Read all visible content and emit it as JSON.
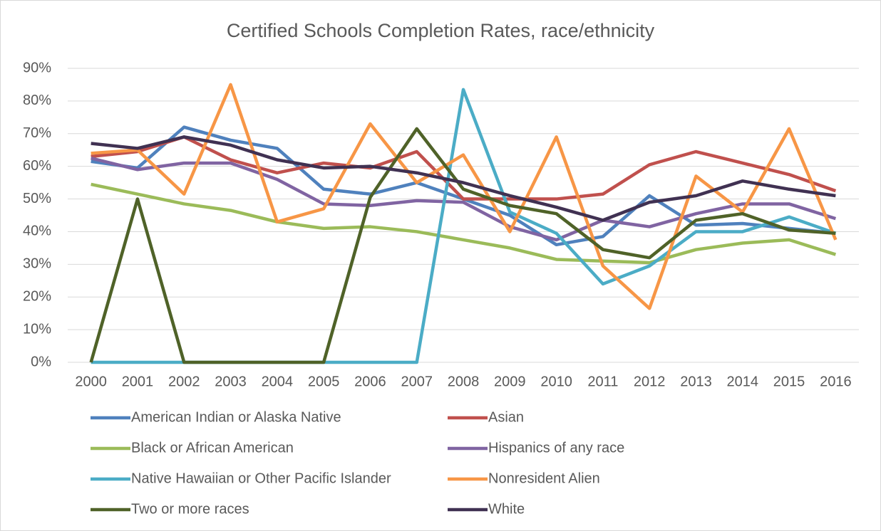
{
  "chart_data": {
    "type": "line",
    "title": "Certified Schools Completion Rates, race/ethnicity",
    "categories": [
      "2000",
      "2001",
      "2002",
      "2003",
      "2004",
      "2005",
      "2006",
      "2007",
      "2008",
      "2009",
      "2010",
      "2011",
      "2012",
      "2013",
      "2014",
      "2015",
      "2016"
    ],
    "series": [
      {
        "name": "American Indian or Alaska Native",
        "color": "#4f81bd",
        "values": [
          61.5,
          59.5,
          72,
          68,
          65.5,
          53,
          51.5,
          55,
          50,
          45,
          36,
          38.5,
          51,
          42,
          42.5,
          41,
          39.5
        ]
      },
      {
        "name": "Asian",
        "color": "#c0504d",
        "values": [
          63,
          64.5,
          69,
          62,
          58,
          61,
          59.5,
          64.5,
          50,
          50,
          50,
          51.5,
          60.5,
          64.5,
          61,
          57.5,
          52.5
        ]
      },
      {
        "name": "Black or African American",
        "color": "#9bbb59",
        "values": [
          54.5,
          51.5,
          48.5,
          46.5,
          43,
          41,
          41.5,
          40,
          37.5,
          35,
          31.5,
          31,
          30.5,
          34.5,
          36.5,
          37.5,
          33
        ]
      },
      {
        "name": "Hispanics of any race",
        "color": "#8064a2",
        "values": [
          62.5,
          59,
          61,
          61,
          56,
          48.5,
          48,
          49.5,
          49,
          41.5,
          37.5,
          43.5,
          41.5,
          45.5,
          48.5,
          48.5,
          44
        ]
      },
      {
        "name": "Native Hawaiian or Other Pacific Islander",
        "color": "#4bacc6",
        "values": [
          0,
          0,
          0,
          0,
          0,
          0,
          0,
          0,
          83.5,
          46,
          39.5,
          24,
          29.5,
          40,
          40,
          44.5,
          39.5
        ]
      },
      {
        "name": "Nonresident Alien",
        "color": "#f79646",
        "values": [
          64,
          65,
          51.5,
          85,
          43,
          47,
          73,
          55,
          63.5,
          40,
          69,
          29.5,
          16.5,
          57,
          46,
          71.5,
          37.5
        ]
      },
      {
        "name": "Two or more races",
        "color": "#4f6228",
        "values": [
          0,
          50,
          0,
          0,
          0,
          0,
          50.5,
          71.5,
          53,
          48,
          45.5,
          34.5,
          32,
          43.5,
          45.5,
          40.5,
          39.5
        ]
      },
      {
        "name": "White",
        "color": "#403152",
        "values": [
          67,
          65.5,
          69,
          66.5,
          62,
          59.5,
          60,
          58,
          55,
          51,
          47.5,
          43.5,
          49,
          51,
          55.5,
          53,
          51
        ]
      }
    ],
    "ylim": [
      0,
      90
    ],
    "yticks": [
      {
        "value": 0,
        "label": "0%"
      },
      {
        "value": 10,
        "label": "10%"
      },
      {
        "value": 20,
        "label": "20%"
      },
      {
        "value": 30,
        "label": "30%"
      },
      {
        "value": 40,
        "label": "40%"
      },
      {
        "value": 50,
        "label": "50%"
      },
      {
        "value": 60,
        "label": "60%"
      },
      {
        "value": 70,
        "label": "70%"
      },
      {
        "value": 80,
        "label": "80%"
      },
      {
        "value": 90,
        "label": "90%"
      }
    ],
    "grid": true,
    "legend": "bottom"
  }
}
